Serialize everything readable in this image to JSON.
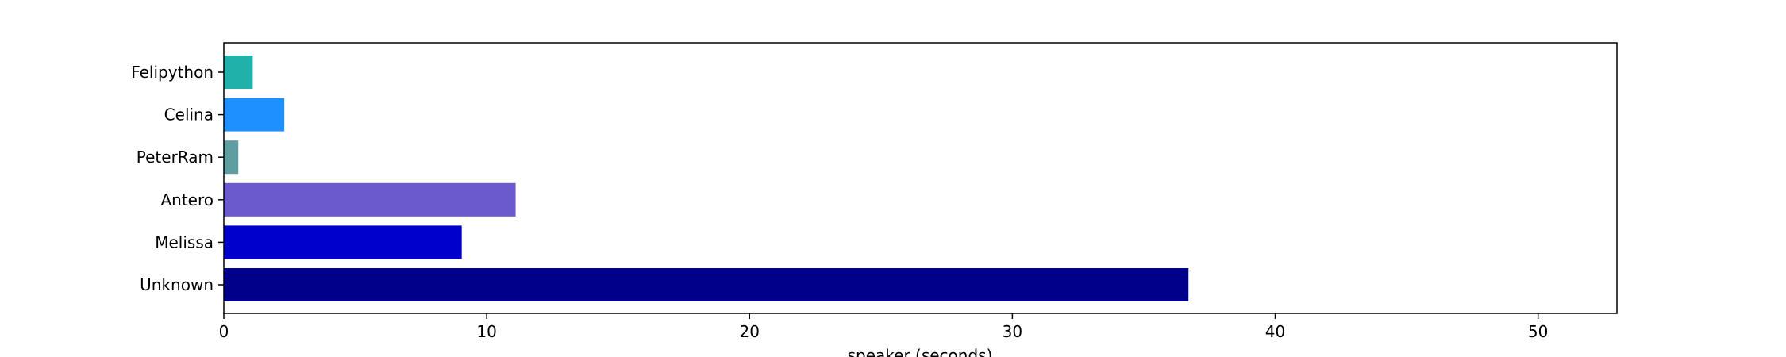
{
  "chart_data": {
    "type": "bar",
    "orientation": "horizontal",
    "title": "",
    "xlabel": "speaker (seconds)",
    "ylabel": "",
    "xlim": [
      0,
      53
    ],
    "xticks": [
      0,
      10,
      20,
      30,
      40,
      50
    ],
    "grid": false,
    "legend": "none",
    "categories": [
      "Felipython",
      "Celina",
      "PeterRam",
      "Antero",
      "Melissa",
      "Unknown"
    ],
    "values": [
      1.1,
      2.3,
      0.55,
      11.1,
      9.05,
      36.7
    ],
    "colors": [
      "#20b2aa",
      "#1e90ff",
      "#5f9ea0",
      "#6a5acd",
      "#0000cd",
      "#00008b"
    ]
  }
}
